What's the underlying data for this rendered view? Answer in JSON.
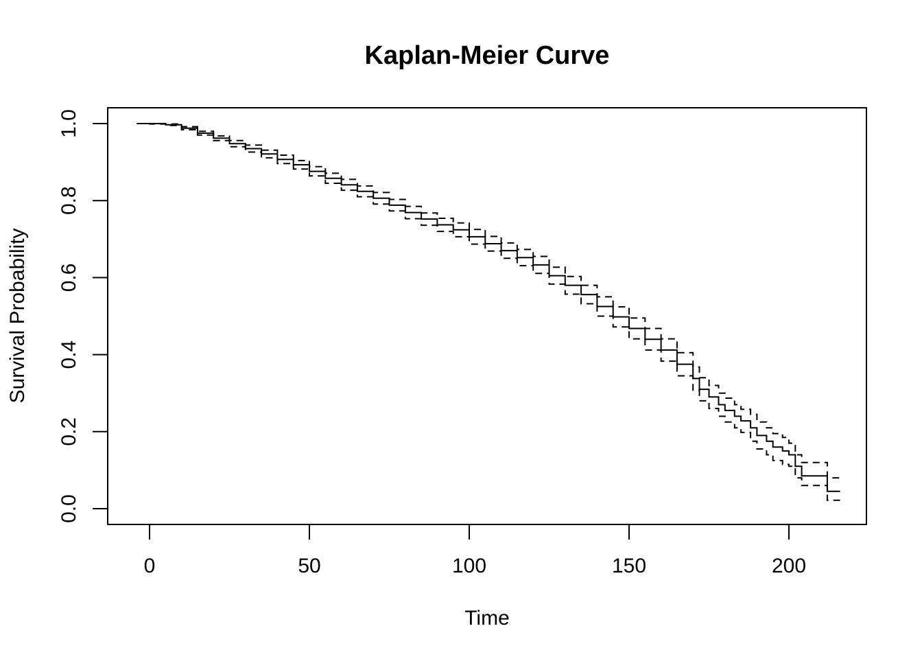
{
  "chart_data": {
    "type": "line",
    "title": "Kaplan-Meier Curve",
    "xlabel": "Time",
    "ylabel": "Survival Probability",
    "xlim": [
      -4,
      218
    ],
    "ylim": [
      0,
      1
    ],
    "x_ticks": [
      0,
      50,
      100,
      150,
      200
    ],
    "y_ticks": [
      0.0,
      0.2,
      0.4,
      0.6,
      0.8,
      1.0
    ],
    "x_tick_labels": [
      "0",
      "50",
      "100",
      "150",
      "200"
    ],
    "y_tick_labels": [
      "0.0",
      "0.2",
      "0.4",
      "0.6",
      "0.8",
      "1.0"
    ],
    "grid": false,
    "legend": "none",
    "series": [
      {
        "style": "step-solid",
        "x": [
          -4,
          0,
          5,
          10,
          15,
          20,
          25,
          30,
          35,
          40,
          45,
          50,
          55,
          60,
          65,
          70,
          75,
          80,
          85,
          90,
          95,
          100,
          105,
          110,
          115,
          120,
          125,
          130,
          135,
          140,
          145,
          150,
          155,
          160,
          165,
          170,
          172,
          175,
          178,
          180,
          183,
          185,
          188,
          190,
          193,
          195,
          198,
          200,
          202,
          204,
          208,
          212,
          216
        ],
        "y": [
          1.0,
          1.0,
          0.997,
          0.988,
          0.975,
          0.962,
          0.948,
          0.935,
          0.921,
          0.907,
          0.893,
          0.876,
          0.858,
          0.841,
          0.824,
          0.806,
          0.788,
          0.769,
          0.752,
          0.737,
          0.724,
          0.706,
          0.688,
          0.67,
          0.652,
          0.633,
          0.605,
          0.58,
          0.556,
          0.525,
          0.498,
          0.468,
          0.44,
          0.412,
          0.375,
          0.338,
          0.31,
          0.29,
          0.27,
          0.255,
          0.24,
          0.228,
          0.21,
          0.19,
          0.175,
          0.16,
          0.15,
          0.14,
          0.11,
          0.085,
          0.085,
          0.045,
          0.045
        ]
      },
      {
        "style": "step-dashed",
        "x": [
          -4,
          0,
          5,
          10,
          15,
          20,
          25,
          30,
          35,
          40,
          45,
          50,
          55,
          60,
          65,
          70,
          75,
          80,
          85,
          90,
          95,
          100,
          105,
          110,
          115,
          120,
          125,
          130,
          135,
          140,
          145,
          150,
          155,
          160,
          165,
          170,
          172,
          175,
          178,
          180,
          183,
          185,
          188,
          190,
          193,
          195,
          198,
          200,
          202,
          204,
          208,
          212,
          216
        ],
        "y": [
          1.0,
          1.0,
          0.999,
          0.992,
          0.98,
          0.968,
          0.956,
          0.944,
          0.931,
          0.918,
          0.904,
          0.888,
          0.871,
          0.855,
          0.838,
          0.821,
          0.803,
          0.785,
          0.768,
          0.754,
          0.742,
          0.725,
          0.707,
          0.69,
          0.673,
          0.655,
          0.627,
          0.603,
          0.58,
          0.55,
          0.524,
          0.495,
          0.468,
          0.441,
          0.405,
          0.368,
          0.34,
          0.32,
          0.3,
          0.287,
          0.27,
          0.258,
          0.245,
          0.225,
          0.21,
          0.195,
          0.185,
          0.17,
          0.14,
          0.12,
          0.12,
          0.08,
          0.08
        ]
      },
      {
        "style": "step-dashed",
        "x": [
          -4,
          0,
          5,
          10,
          15,
          20,
          25,
          30,
          35,
          40,
          45,
          50,
          55,
          60,
          65,
          70,
          75,
          80,
          85,
          90,
          95,
          100,
          105,
          110,
          115,
          120,
          125,
          130,
          135,
          140,
          145,
          150,
          155,
          160,
          165,
          170,
          172,
          175,
          178,
          180,
          183,
          185,
          188,
          190,
          193,
          195,
          198,
          200,
          202,
          204,
          208,
          212,
          216
        ],
        "y": [
          1.0,
          0.999,
          0.995,
          0.984,
          0.97,
          0.956,
          0.94,
          0.926,
          0.911,
          0.896,
          0.882,
          0.864,
          0.845,
          0.827,
          0.81,
          0.791,
          0.773,
          0.753,
          0.736,
          0.72,
          0.706,
          0.687,
          0.669,
          0.65,
          0.631,
          0.611,
          0.583,
          0.557,
          0.532,
          0.5,
          0.472,
          0.441,
          0.412,
          0.383,
          0.345,
          0.308,
          0.28,
          0.26,
          0.24,
          0.225,
          0.21,
          0.198,
          0.175,
          0.155,
          0.14,
          0.125,
          0.115,
          0.11,
          0.08,
          0.06,
          0.06,
          0.022,
          0.022
        ]
      }
    ]
  }
}
